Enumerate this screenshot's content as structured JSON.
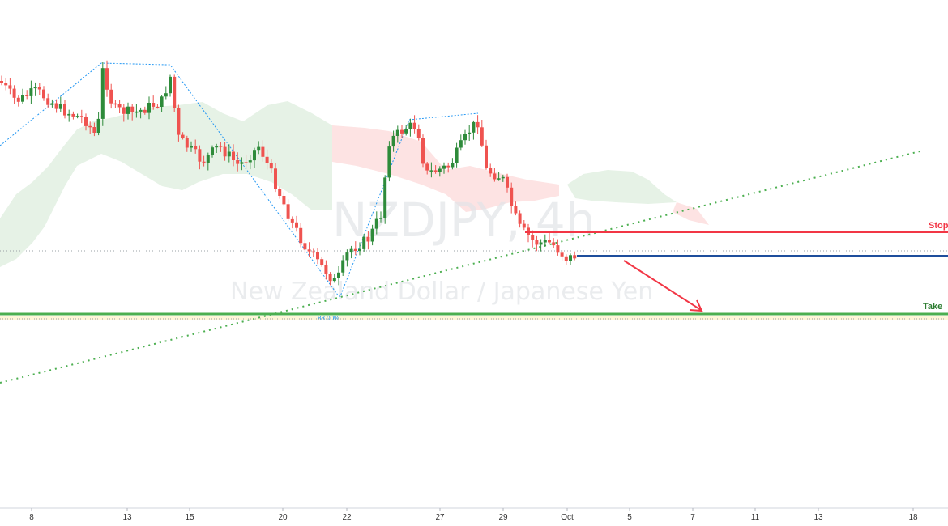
{
  "watermark": {
    "symbol": "NZDJPY, 4h",
    "description": "New Zealand Dollar / Japanese Yen"
  },
  "levels": {
    "stop_label": "Stop",
    "take_label": "Take",
    "fib_label": "88.00%"
  },
  "colors": {
    "up": "#2e8b3a",
    "down": "#ef5350",
    "stop": "#f23645",
    "entry": "#1e4e9c",
    "take": "#4caf50",
    "arrow": "#f23645",
    "trend": "#4caf50",
    "zigzag": "#2196f3",
    "cloud_bull": "#e6f2e6",
    "cloud_bear": "#fde3e3"
  },
  "chart_data": {
    "type": "candlestick",
    "title": "",
    "xlabel": "",
    "ylabel": "",
    "x_ticks": [
      "8",
      "13",
      "15",
      "20",
      "22",
      "27",
      "29",
      "Oct",
      "5",
      "7",
      "11",
      "13",
      "18"
    ],
    "trade_setup": {
      "direction": "short",
      "stop_label": "Stop",
      "take_label": "Take"
    },
    "grid": false
  }
}
